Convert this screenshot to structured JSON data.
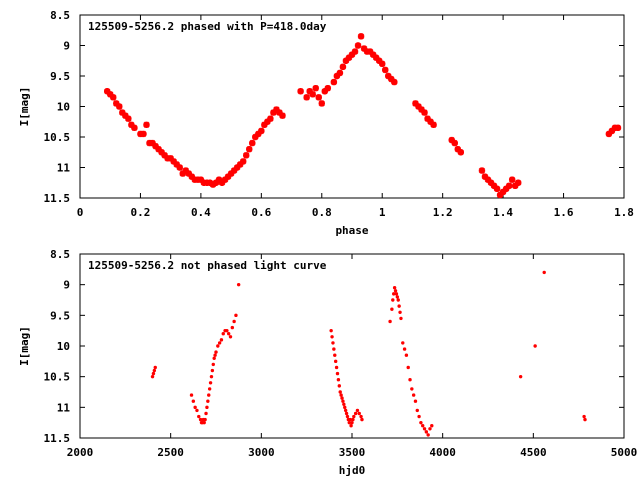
{
  "chart_data": [
    {
      "type": "scatter",
      "title": "125509-5256.2 phased with P=418.0day",
      "xlabel": "phase",
      "ylabel": "I[mag]",
      "xlim": [
        0,
        1.8
      ],
      "ylim": [
        11.5,
        8.5
      ],
      "y_inverted": true,
      "xticks": [
        "0",
        "0.2",
        "0.4",
        "0.6",
        "0.8",
        "1",
        "1.2",
        "1.4",
        "1.6",
        "1.8"
      ],
      "xtick_values": [
        0,
        0.2,
        0.4,
        0.6,
        0.8,
        1.0,
        1.2,
        1.4,
        1.6,
        1.8
      ],
      "yticks": [
        "8.5",
        "9",
        "9.5",
        "10",
        "10.5",
        "11",
        "11.5"
      ],
      "ytick_values": [
        8.5,
        9,
        9.5,
        10,
        10.5,
        11,
        11.5
      ],
      "marker_color": "#ff0000",
      "series": [
        {
          "x": [
            0.09,
            0.1,
            0.11,
            0.12,
            0.13,
            0.14,
            0.15,
            0.16,
            0.17,
            0.18,
            0.2,
            0.21,
            0.22,
            0.23,
            0.24,
            0.25,
            0.26,
            0.27,
            0.28,
            0.29,
            0.3,
            0.31,
            0.32,
            0.33,
            0.34,
            0.35,
            0.36,
            0.37,
            0.38,
            0.39,
            0.4,
            0.41,
            0.42,
            0.43,
            0.44,
            0.45,
            0.46,
            0.47,
            0.48,
            0.49,
            0.5,
            0.51,
            0.52,
            0.53,
            0.54,
            0.55,
            0.56,
            0.57,
            0.58,
            0.59,
            0.6,
            0.61,
            0.62,
            0.63,
            0.64,
            0.65,
            0.66,
            0.67,
            0.73,
            0.75,
            0.76,
            0.77,
            0.78,
            0.79,
            0.8,
            0.81,
            0.82,
            0.84,
            0.85,
            0.86,
            0.87,
            0.88,
            0.89,
            0.9,
            0.91,
            0.92,
            0.93,
            0.94,
            0.95,
            0.96,
            0.97,
            0.98,
            0.99,
            1.0,
            1.01,
            1.02,
            1.03,
            1.04,
            1.11,
            1.12,
            1.13,
            1.14,
            1.15,
            1.16,
            1.17,
            1.23,
            1.24,
            1.25,
            1.26,
            1.33,
            1.34,
            1.35,
            1.36,
            1.37,
            1.38,
            1.39,
            1.4,
            1.41,
            1.42,
            1.43,
            1.44,
            1.45,
            1.75,
            1.76,
            1.77,
            1.78
          ],
          "y": [
            9.75,
            9.8,
            9.85,
            9.95,
            10.0,
            10.1,
            10.15,
            10.2,
            10.3,
            10.35,
            10.45,
            10.45,
            10.3,
            10.6,
            10.6,
            10.65,
            10.7,
            10.75,
            10.8,
            10.85,
            10.85,
            10.9,
            10.95,
            11.0,
            11.1,
            11.05,
            11.1,
            11.15,
            11.2,
            11.2,
            11.2,
            11.25,
            11.25,
            11.25,
            11.28,
            11.25,
            11.2,
            11.25,
            11.2,
            11.15,
            11.1,
            11.05,
            11.0,
            10.95,
            10.9,
            10.8,
            10.7,
            10.6,
            10.5,
            10.45,
            10.4,
            10.3,
            10.25,
            10.2,
            10.1,
            10.05,
            10.1,
            10.15,
            9.75,
            9.85,
            9.75,
            9.8,
            9.7,
            9.85,
            9.95,
            9.75,
            9.7,
            9.6,
            9.5,
            9.45,
            9.35,
            9.25,
            9.2,
            9.15,
            9.1,
            9.0,
            8.85,
            9.05,
            9.1,
            9.1,
            9.15,
            9.2,
            9.25,
            9.3,
            9.4,
            9.5,
            9.55,
            9.6,
            9.95,
            10.0,
            10.05,
            10.1,
            10.2,
            10.25,
            10.3,
            10.55,
            10.6,
            10.7,
            10.75,
            11.05,
            11.15,
            11.2,
            11.25,
            11.3,
            11.35,
            11.45,
            11.4,
            11.35,
            11.3,
            11.2,
            11.3,
            11.25,
            10.45,
            10.4,
            10.35,
            10.35
          ]
        }
      ]
    },
    {
      "type": "scatter",
      "title": "125509-5256.2 not phased light curve",
      "xlabel": "hjd0",
      "ylabel": "I[mag]",
      "xlim": [
        2000,
        5000
      ],
      "ylim": [
        11.5,
        8.5
      ],
      "y_inverted": true,
      "xticks": [
        "2000",
        "2500",
        "3000",
        "3500",
        "4000",
        "4500",
        "5000"
      ],
      "xtick_values": [
        2000,
        2500,
        3000,
        3500,
        4000,
        4500,
        5000
      ],
      "yticks": [
        "8.5",
        "9",
        "9.5",
        "10",
        "10.5",
        "11",
        "11.5"
      ],
      "ytick_values": [
        8.5,
        9,
        9.5,
        10,
        10.5,
        11,
        11.5
      ],
      "marker_color": "#ff0000",
      "series": [
        {
          "x": [
            2400,
            2405,
            2410,
            2415,
            2615,
            2625,
            2635,
            2645,
            2655,
            2665,
            2670,
            2675,
            2680,
            2685,
            2690,
            2695,
            2700,
            2705,
            2710,
            2715,
            2720,
            2725,
            2730,
            2735,
            2740,
            2745,
            2750,
            2760,
            2770,
            2780,
            2790,
            2800,
            2810,
            2820,
            2830,
            2840,
            2850,
            2860,
            2875,
            3385,
            3390,
            3395,
            3400,
            3405,
            3410,
            3415,
            3420,
            3425,
            3430,
            3435,
            3440,
            3445,
            3450,
            3455,
            3460,
            3465,
            3470,
            3475,
            3480,
            3485,
            3490,
            3495,
            3500,
            3505,
            3510,
            3520,
            3530,
            3540,
            3550,
            3555,
            3710,
            3720,
            3725,
            3730,
            3735,
            3740,
            3745,
            3750,
            3755,
            3760,
            3765,
            3770,
            3780,
            3790,
            3800,
            3810,
            3820,
            3830,
            3840,
            3850,
            3860,
            3870,
            3880,
            3890,
            3900,
            3910,
            3920,
            3930,
            3940,
            4430,
            4510,
            4560,
            4780,
            4785
          ],
          "y": [
            10.5,
            10.45,
            10.4,
            10.35,
            10.8,
            10.9,
            11.0,
            11.05,
            11.15,
            11.2,
            11.25,
            11.25,
            11.2,
            11.25,
            11.2,
            11.1,
            11.0,
            10.9,
            10.8,
            10.7,
            10.6,
            10.5,
            10.4,
            10.3,
            10.2,
            10.15,
            10.1,
            10.0,
            9.95,
            9.9,
            9.8,
            9.75,
            9.75,
            9.8,
            9.85,
            9.7,
            9.6,
            9.5,
            9.0,
            9.75,
            9.85,
            9.95,
            10.05,
            10.15,
            10.25,
            10.35,
            10.45,
            10.55,
            10.65,
            10.75,
            10.8,
            10.85,
            10.9,
            10.95,
            11.0,
            11.05,
            11.1,
            11.15,
            11.2,
            11.25,
            11.2,
            11.3,
            11.25,
            11.2,
            11.15,
            11.1,
            11.05,
            11.1,
            11.15,
            11.2,
            9.6,
            9.4,
            9.25,
            9.15,
            9.05,
            9.1,
            9.15,
            9.2,
            9.25,
            9.35,
            9.45,
            9.55,
            9.95,
            10.05,
            10.15,
            10.35,
            10.55,
            10.7,
            10.8,
            10.9,
            11.05,
            11.15,
            11.25,
            11.3,
            11.35,
            11.4,
            11.45,
            11.35,
            11.3,
            10.5,
            10.0,
            8.8,
            11.15,
            11.2
          ]
        }
      ]
    }
  ]
}
